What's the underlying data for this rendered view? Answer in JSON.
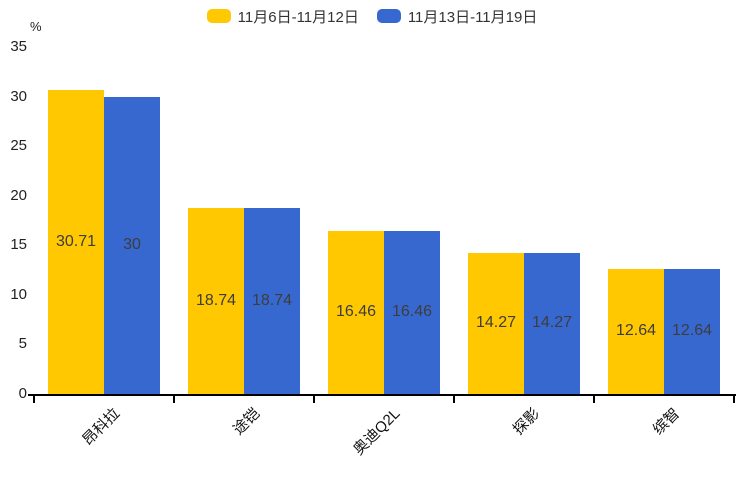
{
  "chart_data": {
    "type": "bar",
    "title": "",
    "categories": [
      "昂科拉",
      "途铠",
      "奥迪Q2L",
      "探影",
      "缤智"
    ],
    "series": [
      {
        "name": "11月6日-11月12日",
        "color": "#ffc800",
        "values": [
          30.71,
          18.74,
          16.46,
          14.27,
          12.64
        ],
        "value_labels": [
          "30.71",
          "18.74",
          "16.46",
          "14.27",
          "12.64"
        ]
      },
      {
        "name": "11月13日-11月19日",
        "color": "#3768cf",
        "values": [
          30,
          18.74,
          16.46,
          14.27,
          12.64
        ],
        "value_labels": [
          "30",
          "18.74",
          "16.46",
          "14.27",
          "12.64"
        ]
      }
    ],
    "xlabel": "",
    "ylabel": "%",
    "ylim": [
      0,
      35
    ],
    "yticks": [
      0,
      5,
      10,
      15,
      20,
      25,
      30,
      35
    ],
    "grid": false,
    "legend_position": "top",
    "bar_label_position": "inside-center",
    "category_label_rotation_deg": -45
  }
}
